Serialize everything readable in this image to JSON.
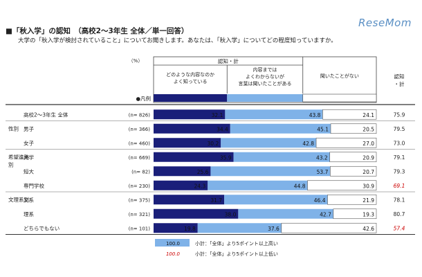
{
  "title": "■「秋入学」の認知　（高校2～3年生 全体／単一回答）",
  "question": "大学の「秋入学が検討されていること」についてお聞きします。あなたは、「秋入学」についてどの程度知っていますか。",
  "logo": "ReseMom",
  "header": {
    "unit": "（%）",
    "group_label": "認知・計",
    "legend_marker": "●凡例",
    "total_col": "認知\n・計"
  },
  "colors": {
    "dark": "#1a1f7a",
    "mid": "#7fb2e8",
    "light": "#ffffff",
    "highlight_low": "#cc0000"
  },
  "chart_data": {
    "type": "bar",
    "stacked": true,
    "horizontal": true,
    "xlim": [
      0,
      100
    ],
    "series": [
      {
        "name": "どのような内容なのか\nよく知っている",
        "color": "#1a1f7a"
      },
      {
        "name": "内容までは\nよくわからないが\n言葉は聞いたことがある",
        "color": "#7fb2e8"
      },
      {
        "name": "聞いたことがない",
        "color": "#ffffff"
      }
    ],
    "rows": [
      {
        "group": "",
        "label": "高校2～3年生 全体",
        "n": "(n= 826)",
        "values": [
          32.1,
          43.8,
          24.1
        ],
        "total": "75.9",
        "flag": ""
      },
      {
        "group": "性別",
        "label": "男子",
        "n": "(n= 366)",
        "values": [
          34.4,
          45.1,
          20.5
        ],
        "total": "79.5",
        "flag": ""
      },
      {
        "group": "",
        "label": "女子",
        "n": "(n= 460)",
        "values": [
          30.2,
          42.8,
          27.0
        ],
        "total": "73.0",
        "flag": ""
      },
      {
        "group": "希望進路別",
        "label": "大学",
        "n": "(n= 669)",
        "values": [
          35.9,
          43.2,
          20.9
        ],
        "total": "79.1",
        "flag": ""
      },
      {
        "group": "",
        "label": "短大",
        "n": "(n= 82)",
        "values": [
          25.6,
          53.7,
          20.7
        ],
        "total": "79.3",
        "flag": ""
      },
      {
        "group": "",
        "label": "専門学校",
        "n": "(n= 230)",
        "values": [
          24.3,
          44.8,
          30.9
        ],
        "total": "69.1",
        "flag": "low"
      },
      {
        "group": "文理系別",
        "label": "文系",
        "n": "(n= 375)",
        "values": [
          31.7,
          46.4,
          21.9
        ],
        "total": "78.1",
        "flag": ""
      },
      {
        "group": "",
        "label": "理系",
        "n": "(n= 321)",
        "values": [
          38.0,
          42.7,
          19.3
        ],
        "total": "80.7",
        "flag": ""
      },
      {
        "group": "",
        "label": "どちらでもない",
        "n": "(n= 101)",
        "values": [
          19.8,
          37.6,
          42.6
        ],
        "total": "57.4",
        "flag": "low"
      }
    ]
  },
  "notes": {
    "high_sample": "100.0",
    "high_text": "小計：「全体」より5ポイント以上高い",
    "low_sample": "100.0",
    "low_text": "小計：「全体」より5ポイント以上低い"
  }
}
